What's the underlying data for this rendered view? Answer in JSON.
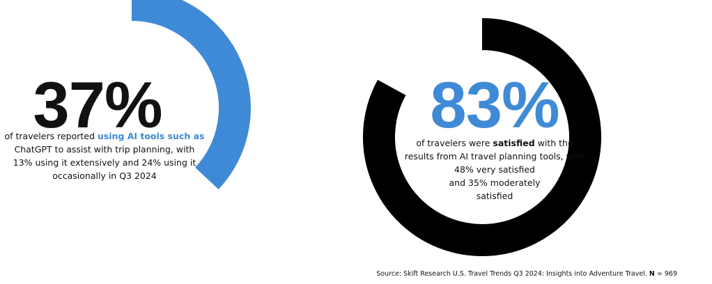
{
  "chart_data": [
    {
      "type": "donut",
      "value_percent": 37,
      "color": "#3f8ad6",
      "headline": "37%",
      "description": {
        "line1_pre": "of travelers reported ",
        "line1_highlight": "using AI tools such as",
        "line2": "ChatGPT to assist with trip planning, with",
        "line3": "13% using it extensively and 24% using it",
        "line4": "occasionally in Q3 2024"
      },
      "breakdown": [
        {
          "name": "extensively",
          "value": 13
        },
        {
          "name": "occasionally",
          "value": 24
        }
      ]
    },
    {
      "type": "donut",
      "value_percent": 83,
      "color": "#000000",
      "headline": "83%",
      "headline_color": "#3f8ad6",
      "description": {
        "line1_pre": "of travelers were ",
        "line1_highlight": "satisfied",
        "line1_post": " with the",
        "line2": "results from AI travel planning tools, with",
        "line3": "48% very satisfied",
        "line4": "and 35% moderately",
        "line5": "satisfied"
      },
      "breakdown": [
        {
          "name": "very satisfied",
          "value": 48
        },
        {
          "name": "moderately satisfied",
          "value": 35
        }
      ]
    }
  ],
  "source": {
    "text": "Source: Skift Research U.S. Travel Trends Q3 2024: Insights into Adventure Travel. ",
    "n_label": "N",
    "n_value": " = 969"
  }
}
